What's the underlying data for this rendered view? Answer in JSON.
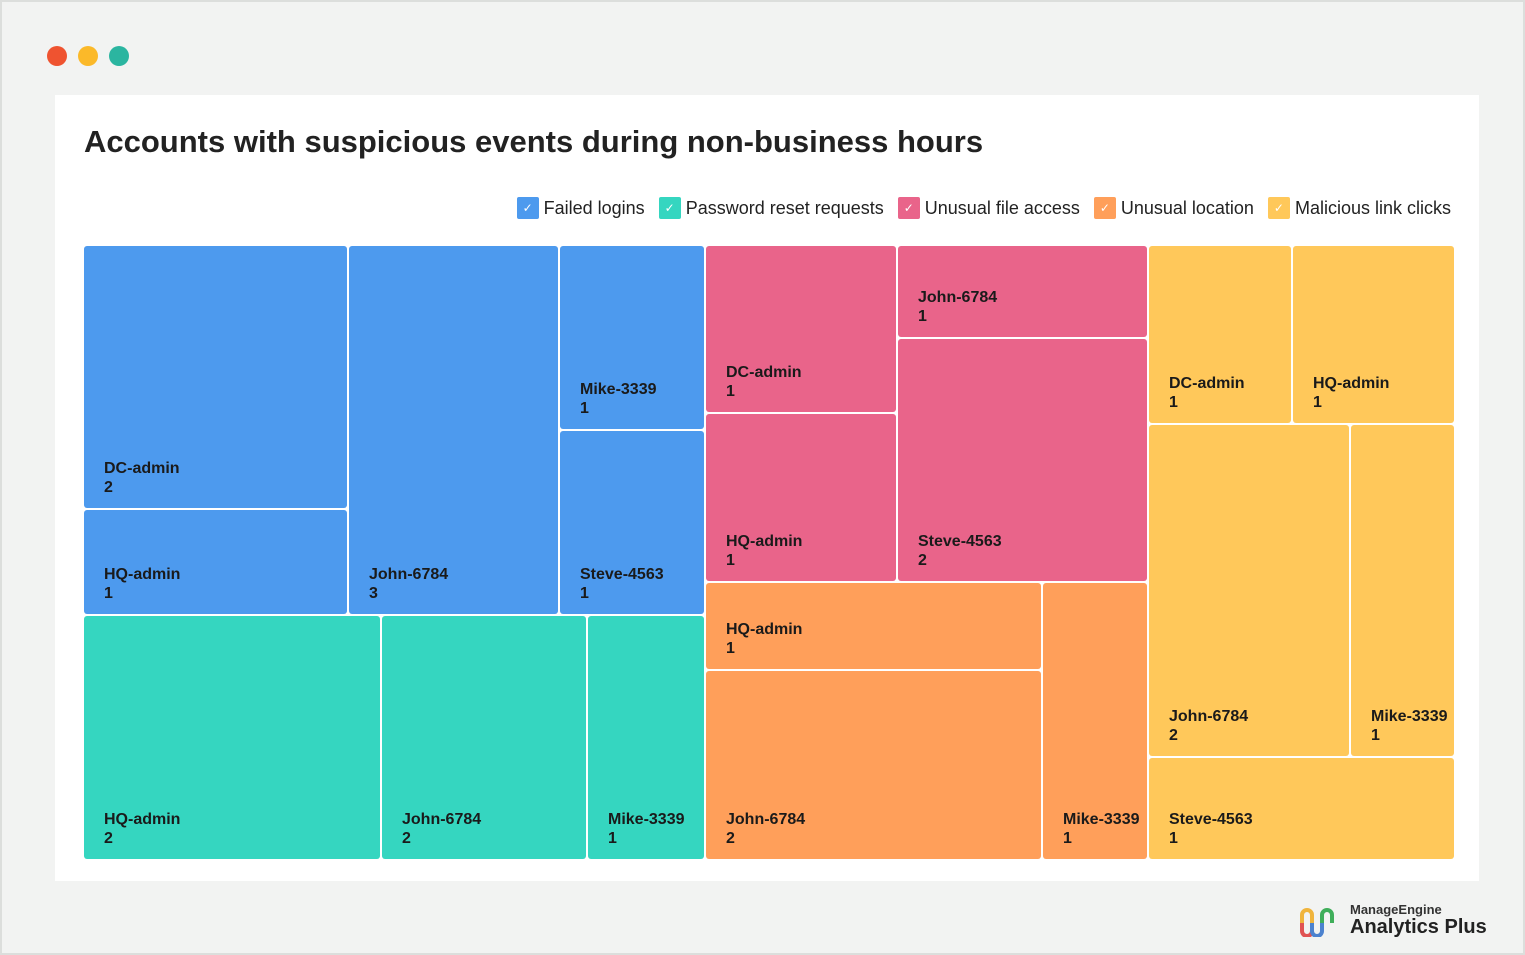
{
  "window": {
    "dots": [
      "#ef5330",
      "#fbb929",
      "#2bb5a0"
    ]
  },
  "chart_data": {
    "type": "treemap",
    "title": "Accounts with suspicious events during non-business hours",
    "legend_position": "top-right",
    "series": [
      {
        "name": "Failed logins",
        "color": "#4d9aee",
        "items": [
          {
            "name": "DC-admin",
            "value": 2
          },
          {
            "name": "HQ-admin",
            "value": 1
          },
          {
            "name": "John-6784",
            "value": 3
          },
          {
            "name": "Mike-3339",
            "value": 1
          },
          {
            "name": "Steve-4563",
            "value": 1
          }
        ]
      },
      {
        "name": "Password reset requests",
        "color": "#35d6c0",
        "items": [
          {
            "name": "HQ-admin",
            "value": 2
          },
          {
            "name": "John-6784",
            "value": 2
          },
          {
            "name": "Mike-3339",
            "value": 1
          }
        ]
      },
      {
        "name": "Unusual file access",
        "color": "#e9648a",
        "items": [
          {
            "name": "DC-admin",
            "value": 1
          },
          {
            "name": "HQ-admin",
            "value": 1
          },
          {
            "name": "John-6784",
            "value": 1
          },
          {
            "name": "Steve-4563",
            "value": 2
          }
        ]
      },
      {
        "name": "Unusual location",
        "color": "#ff9f5a",
        "items": [
          {
            "name": "HQ-admin",
            "value": 1
          },
          {
            "name": "John-6784",
            "value": 2
          },
          {
            "name": "Mike-3339",
            "value": 1
          }
        ]
      },
      {
        "name": "Malicious link clicks",
        "color": "#ffc85a",
        "items": [
          {
            "name": "DC-admin",
            "value": 1
          },
          {
            "name": "HQ-admin",
            "value": 1
          },
          {
            "name": "John-6784",
            "value": 2
          },
          {
            "name": "Mike-3339",
            "value": 1
          },
          {
            "name": "Steve-4563",
            "value": 1
          }
        ]
      }
    ]
  },
  "branding": {
    "company": "ManageEngine",
    "product": "Analytics Plus"
  }
}
